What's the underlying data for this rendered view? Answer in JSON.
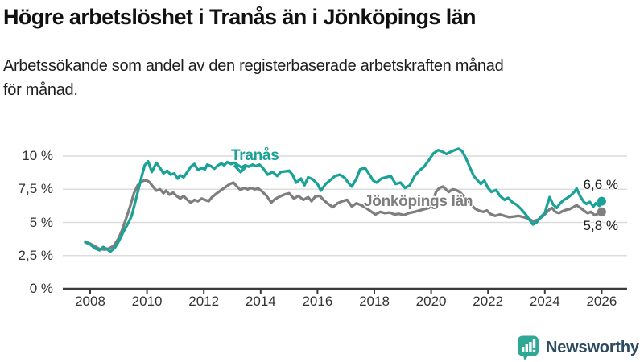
{
  "header": {
    "title": "Högre arbetslöshet i Tranås än i Jönköpings län",
    "subtitle_line1": "Arbetssökande som andel av den registerbaserade arbetskraften månad",
    "subtitle_line2": "för månad."
  },
  "colors": {
    "tranas": "#1ba296",
    "jonkoping": "#7e7e7e",
    "axis": "#3b3b3b",
    "grid": "#dcdcdc",
    "text": "#1a1a1a",
    "brand_text": "#2d4a5e",
    "brand_icon": "#2ea795"
  },
  "chart_data": {
    "type": "line",
    "title": "Högre arbetslöshet i Tranås än i Jönköpings län",
    "xlabel": "",
    "ylabel": "Arbetssökande som andel av den registerbaserade arbetskraften",
    "legend_position": "inline-labels",
    "grid": true,
    "x_axis": {
      "ticks": [
        2008,
        2010,
        2012,
        2014,
        2016,
        2018,
        2020,
        2022,
        2024,
        2026
      ],
      "range": [
        2007.8,
        2026.9
      ]
    },
    "y_axis": {
      "ticks": [
        {
          "value": 0,
          "label": "0 %"
        },
        {
          "value": 2.5,
          "label": "2,5 %"
        },
        {
          "value": 5,
          "label": "5 %"
        },
        {
          "value": 7.5,
          "label": "7,5 %"
        },
        {
          "value": 10,
          "label": "10 %"
        }
      ],
      "range": [
        0,
        10.7
      ]
    },
    "annotations": {
      "tranas_label": "Tranås",
      "jonkoping_label": "Jönköpings län",
      "end_value_tranas": "6,6 %",
      "end_value_jonkoping": "5,8 %"
    },
    "series": [
      {
        "name": "Jönköpings län",
        "color": "#7e7e7e",
        "end_value": 5.8,
        "points": [
          [
            2007.83,
            3.55
          ],
          [
            2008.0,
            3.4
          ],
          [
            2008.17,
            3.2
          ],
          [
            2008.33,
            3.0
          ],
          [
            2008.5,
            2.95
          ],
          [
            2008.67,
            3.05
          ],
          [
            2008.83,
            3.25
          ],
          [
            2009.0,
            3.8
          ],
          [
            2009.12,
            4.4
          ],
          [
            2009.25,
            5.2
          ],
          [
            2009.42,
            6.3
          ],
          [
            2009.54,
            7.2
          ],
          [
            2009.67,
            7.8
          ],
          [
            2009.83,
            8.1
          ],
          [
            2009.96,
            8.2
          ],
          [
            2010.08,
            8.05
          ],
          [
            2010.21,
            7.7
          ],
          [
            2010.33,
            7.4
          ],
          [
            2010.46,
            7.5
          ],
          [
            2010.58,
            7.2
          ],
          [
            2010.67,
            7.4
          ],
          [
            2010.79,
            7.1
          ],
          [
            2010.92,
            7.25
          ],
          [
            2011.04,
            7.0
          ],
          [
            2011.17,
            6.8
          ],
          [
            2011.29,
            7.0
          ],
          [
            2011.42,
            6.7
          ],
          [
            2011.54,
            6.5
          ],
          [
            2011.67,
            6.7
          ],
          [
            2011.79,
            6.6
          ],
          [
            2011.92,
            6.8
          ],
          [
            2012.04,
            6.7
          ],
          [
            2012.17,
            6.6
          ],
          [
            2012.29,
            6.9
          ],
          [
            2012.46,
            7.2
          ],
          [
            2012.62,
            7.45
          ],
          [
            2012.79,
            7.7
          ],
          [
            2012.92,
            7.9
          ],
          [
            2013.04,
            8.0
          ],
          [
            2013.17,
            7.7
          ],
          [
            2013.29,
            7.45
          ],
          [
            2013.42,
            7.6
          ],
          [
            2013.54,
            7.5
          ],
          [
            2013.67,
            7.6
          ],
          [
            2013.79,
            7.5
          ],
          [
            2013.92,
            7.55
          ],
          [
            2014.04,
            7.35
          ],
          [
            2014.21,
            7.0
          ],
          [
            2014.37,
            6.5
          ],
          [
            2014.5,
            6.75
          ],
          [
            2014.67,
            6.95
          ],
          [
            2014.83,
            7.1
          ],
          [
            2015.0,
            7.2
          ],
          [
            2015.17,
            6.8
          ],
          [
            2015.33,
            7.0
          ],
          [
            2015.5,
            6.7
          ],
          [
            2015.67,
            6.9
          ],
          [
            2015.79,
            6.6
          ],
          [
            2015.92,
            6.95
          ],
          [
            2016.08,
            7.0
          ],
          [
            2016.21,
            6.7
          ],
          [
            2016.37,
            6.4
          ],
          [
            2016.54,
            6.15
          ],
          [
            2016.71,
            6.45
          ],
          [
            2016.87,
            6.6
          ],
          [
            2017.04,
            6.7
          ],
          [
            2017.21,
            6.2
          ],
          [
            2017.37,
            6.45
          ],
          [
            2017.54,
            6.3
          ],
          [
            2017.71,
            6.1
          ],
          [
            2017.87,
            5.85
          ],
          [
            2018.04,
            5.6
          ],
          [
            2018.21,
            5.8
          ],
          [
            2018.37,
            5.7
          ],
          [
            2018.54,
            5.75
          ],
          [
            2018.71,
            5.6
          ],
          [
            2018.87,
            5.65
          ],
          [
            2019.04,
            5.55
          ],
          [
            2019.21,
            5.7
          ],
          [
            2019.42,
            5.8
          ],
          [
            2019.58,
            5.9
          ],
          [
            2019.75,
            6.0
          ],
          [
            2019.92,
            6.1
          ],
          [
            2020.04,
            6.5
          ],
          [
            2020.17,
            7.3
          ],
          [
            2020.29,
            7.6
          ],
          [
            2020.42,
            7.7
          ],
          [
            2020.54,
            7.45
          ],
          [
            2020.62,
            7.3
          ],
          [
            2020.75,
            7.5
          ],
          [
            2020.87,
            7.45
          ],
          [
            2021.0,
            7.3
          ],
          [
            2021.12,
            7.05
          ],
          [
            2021.29,
            6.7
          ],
          [
            2021.42,
            6.3
          ],
          [
            2021.54,
            6.05
          ],
          [
            2021.67,
            5.9
          ],
          [
            2021.83,
            5.8
          ],
          [
            2021.96,
            5.9
          ],
          [
            2022.08,
            5.65
          ],
          [
            2022.25,
            5.5
          ],
          [
            2022.42,
            5.6
          ],
          [
            2022.58,
            5.5
          ],
          [
            2022.75,
            5.4
          ],
          [
            2022.92,
            5.45
          ],
          [
            2023.08,
            5.5
          ],
          [
            2023.25,
            5.4
          ],
          [
            2023.42,
            5.3
          ],
          [
            2023.58,
            5.1
          ],
          [
            2023.75,
            5.2
          ],
          [
            2023.92,
            5.45
          ],
          [
            2024.04,
            5.7
          ],
          [
            2024.17,
            6.0
          ],
          [
            2024.25,
            6.1
          ],
          [
            2024.37,
            5.8
          ],
          [
            2024.5,
            5.7
          ],
          [
            2024.62,
            5.85
          ],
          [
            2024.75,
            5.95
          ],
          [
            2024.87,
            6.0
          ],
          [
            2025.04,
            6.2
          ],
          [
            2025.12,
            6.3
          ],
          [
            2025.25,
            6.1
          ],
          [
            2025.37,
            5.9
          ],
          [
            2025.5,
            5.7
          ],
          [
            2025.62,
            5.8
          ],
          [
            2025.75,
            5.55
          ],
          [
            2025.87,
            5.65
          ],
          [
            2026.0,
            5.8
          ]
        ]
      },
      {
        "name": "Tranås",
        "color": "#1ba296",
        "end_value": 6.6,
        "points": [
          [
            2007.83,
            3.5
          ],
          [
            2008.0,
            3.35
          ],
          [
            2008.17,
            3.05
          ],
          [
            2008.33,
            2.9
          ],
          [
            2008.46,
            3.15
          ],
          [
            2008.58,
            3.0
          ],
          [
            2008.71,
            2.8
          ],
          [
            2008.87,
            3.1
          ],
          [
            2009.0,
            3.55
          ],
          [
            2009.17,
            4.3
          ],
          [
            2009.33,
            4.9
          ],
          [
            2009.46,
            5.5
          ],
          [
            2009.58,
            6.5
          ],
          [
            2009.71,
            7.6
          ],
          [
            2009.83,
            8.6
          ],
          [
            2009.92,
            9.3
          ],
          [
            2010.04,
            9.6
          ],
          [
            2010.17,
            8.8
          ],
          [
            2010.33,
            9.5
          ],
          [
            2010.46,
            9.1
          ],
          [
            2010.58,
            8.7
          ],
          [
            2010.71,
            8.9
          ],
          [
            2010.83,
            8.6
          ],
          [
            2010.96,
            8.7
          ],
          [
            2011.08,
            8.3
          ],
          [
            2011.17,
            8.55
          ],
          [
            2011.29,
            8.4
          ],
          [
            2011.42,
            8.8
          ],
          [
            2011.54,
            9.2
          ],
          [
            2011.67,
            9.4
          ],
          [
            2011.79,
            8.95
          ],
          [
            2011.92,
            9.1
          ],
          [
            2012.04,
            9.0
          ],
          [
            2012.12,
            9.35
          ],
          [
            2012.25,
            9.25
          ],
          [
            2012.37,
            9.05
          ],
          [
            2012.5,
            9.3
          ],
          [
            2012.62,
            9.45
          ],
          [
            2012.71,
            9.3
          ],
          [
            2012.83,
            9.55
          ],
          [
            2012.96,
            9.4
          ],
          [
            2013.08,
            9.5
          ],
          [
            2013.21,
            9.3
          ],
          [
            2013.33,
            9.15
          ],
          [
            2013.46,
            9.3
          ],
          [
            2013.58,
            9.2
          ],
          [
            2013.71,
            9.35
          ],
          [
            2013.83,
            9.25
          ],
          [
            2013.96,
            9.35
          ],
          [
            2014.08,
            9.1
          ],
          [
            2014.25,
            8.6
          ],
          [
            2014.42,
            8.8
          ],
          [
            2014.58,
            8.5
          ],
          [
            2014.71,
            8.8
          ],
          [
            2014.87,
            8.85
          ],
          [
            2015.0,
            8.9
          ],
          [
            2015.12,
            8.6
          ],
          [
            2015.25,
            8.0
          ],
          [
            2015.42,
            8.3
          ],
          [
            2015.54,
            7.8
          ],
          [
            2015.67,
            8.4
          ],
          [
            2015.83,
            8.25
          ],
          [
            2016.0,
            7.9
          ],
          [
            2016.12,
            7.4
          ],
          [
            2016.29,
            7.9
          ],
          [
            2016.46,
            8.2
          ],
          [
            2016.62,
            8.5
          ],
          [
            2016.79,
            8.6
          ],
          [
            2016.96,
            8.35
          ],
          [
            2017.08,
            8.0
          ],
          [
            2017.21,
            7.7
          ],
          [
            2017.37,
            8.3
          ],
          [
            2017.5,
            9.0
          ],
          [
            2017.67,
            9.1
          ],
          [
            2017.83,
            8.6
          ],
          [
            2017.96,
            8.15
          ],
          [
            2018.08,
            8.0
          ],
          [
            2018.25,
            8.3
          ],
          [
            2018.42,
            8.4
          ],
          [
            2018.58,
            8.5
          ],
          [
            2018.75,
            7.9
          ],
          [
            2018.92,
            8.0
          ],
          [
            2019.08,
            7.6
          ],
          [
            2019.25,
            7.8
          ],
          [
            2019.42,
            8.5
          ],
          [
            2019.58,
            8.9
          ],
          [
            2019.75,
            9.2
          ],
          [
            2019.92,
            9.7
          ],
          [
            2020.08,
            10.2
          ],
          [
            2020.25,
            10.45
          ],
          [
            2020.42,
            10.3
          ],
          [
            2020.54,
            10.15
          ],
          [
            2020.67,
            10.3
          ],
          [
            2020.83,
            10.45
          ],
          [
            2020.96,
            10.55
          ],
          [
            2021.08,
            10.4
          ],
          [
            2021.21,
            9.9
          ],
          [
            2021.37,
            9.1
          ],
          [
            2021.5,
            8.5
          ],
          [
            2021.62,
            8.2
          ],
          [
            2021.75,
            7.9
          ],
          [
            2021.87,
            8.15
          ],
          [
            2022.0,
            7.6
          ],
          [
            2022.12,
            7.3
          ],
          [
            2022.29,
            7.45
          ],
          [
            2022.42,
            7.0
          ],
          [
            2022.58,
            6.7
          ],
          [
            2022.71,
            6.85
          ],
          [
            2022.87,
            6.5
          ],
          [
            2023.0,
            6.35
          ],
          [
            2023.17,
            6.0
          ],
          [
            2023.33,
            5.6
          ],
          [
            2023.46,
            5.2
          ],
          [
            2023.58,
            4.85
          ],
          [
            2023.71,
            5.0
          ],
          [
            2023.87,
            5.45
          ],
          [
            2024.0,
            5.7
          ],
          [
            2024.08,
            6.3
          ],
          [
            2024.17,
            6.9
          ],
          [
            2024.29,
            6.35
          ],
          [
            2024.42,
            6.1
          ],
          [
            2024.54,
            6.45
          ],
          [
            2024.67,
            6.7
          ],
          [
            2024.79,
            6.85
          ],
          [
            2024.92,
            7.05
          ],
          [
            2025.04,
            7.3
          ],
          [
            2025.12,
            7.55
          ],
          [
            2025.25,
            6.95
          ],
          [
            2025.37,
            6.55
          ],
          [
            2025.46,
            6.4
          ],
          [
            2025.58,
            6.55
          ],
          [
            2025.71,
            6.2
          ],
          [
            2025.79,
            6.45
          ],
          [
            2025.92,
            6.25
          ],
          [
            2026.0,
            6.6
          ]
        ]
      }
    ]
  },
  "footer": {
    "brand": "Newsworthy",
    "brand_icon": "chart-speech-bubble-icon"
  }
}
